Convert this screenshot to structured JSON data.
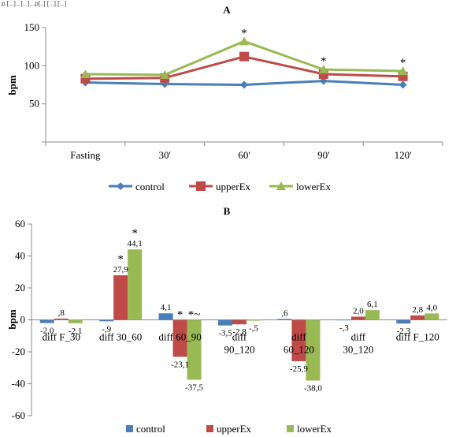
{
  "header_fragment": "p.[...]...[...]...p[..] [...].[...]",
  "chart_data": [
    {
      "panel": "A",
      "type": "line",
      "title": "A",
      "ylabel": "bpm",
      "xlabel": "",
      "ylim": [
        0,
        150
      ],
      "yticks": [
        "50",
        "100",
        "150"
      ],
      "categories": [
        "Fasting",
        "30'",
        "60'",
        "90'",
        "120'"
      ],
      "series": [
        {
          "name": "control",
          "color": "#4a7ebb",
          "marker": "diamond",
          "values": [
            78,
            76,
            75,
            80,
            75
          ]
        },
        {
          "name": "upperEx",
          "color": "#be4b48",
          "marker": "square",
          "values": [
            83,
            84,
            112,
            89,
            86
          ]
        },
        {
          "name": "lowerEx",
          "color": "#98b954",
          "marker": "triangle",
          "values": [
            89,
            88,
            132,
            95,
            93
          ]
        }
      ],
      "annotations": [
        {
          "category": "60'",
          "text": "*"
        },
        {
          "category": "90'",
          "text": "*"
        },
        {
          "category": "120'",
          "text": "*"
        }
      ],
      "legend": "bottom",
      "grid": false
    },
    {
      "panel": "B",
      "type": "bar",
      "title": "B",
      "ylabel": "bpm",
      "xlabel": "",
      "ylim": [
        -60,
        60
      ],
      "yticks": [
        "-60",
        "-40",
        "-20",
        "0",
        "20",
        "40",
        "60"
      ],
      "categories": [
        "diff F_30",
        "diff 30_60",
        "diff 60_90",
        "diff\n90_120",
        "diff\n60_120",
        "diff\n30_120",
        "diff F_120"
      ],
      "series": [
        {
          "name": "control",
          "color": "#4a7ebb",
          "values": [
            -2.0,
            -0.9,
            4.1,
            -3.5,
            0.6,
            -0.3,
            -2.3
          ],
          "labels": [
            "-2,0",
            "-,9",
            "4,1",
            "-3,5",
            ",6",
            "-,3",
            "-2,3"
          ]
        },
        {
          "name": "upperEx",
          "color": "#be4b48",
          "values": [
            0.8,
            27.9,
            -23.1,
            -2.8,
            -25.9,
            2.0,
            2.8
          ],
          "labels": [
            ",8",
            "27,9",
            "-23,1",
            "-2,8",
            "-25,9",
            "2,0",
            "2,8"
          ]
        },
        {
          "name": "lowerEx",
          "color": "#98b954",
          "values": [
            -2.1,
            44.1,
            -37.5,
            -0.5,
            -38.0,
            6.1,
            4.0
          ],
          "labels": [
            "-2,1",
            "44,1",
            "-37,5",
            "-,5",
            "-38,0",
            "6,1",
            "4,0"
          ]
        }
      ],
      "annotations": [
        {
          "category": "diff 30_60",
          "series": "upperEx",
          "text": "*"
        },
        {
          "category": "diff 30_60",
          "series": "lowerEx",
          "text": "*"
        },
        {
          "category": "diff 60_90",
          "series": "upperEx",
          "text": "*"
        },
        {
          "category": "diff 60_90",
          "series": "lowerEx",
          "text": "*~"
        }
      ],
      "legend": "bottom",
      "grid": false
    }
  ]
}
